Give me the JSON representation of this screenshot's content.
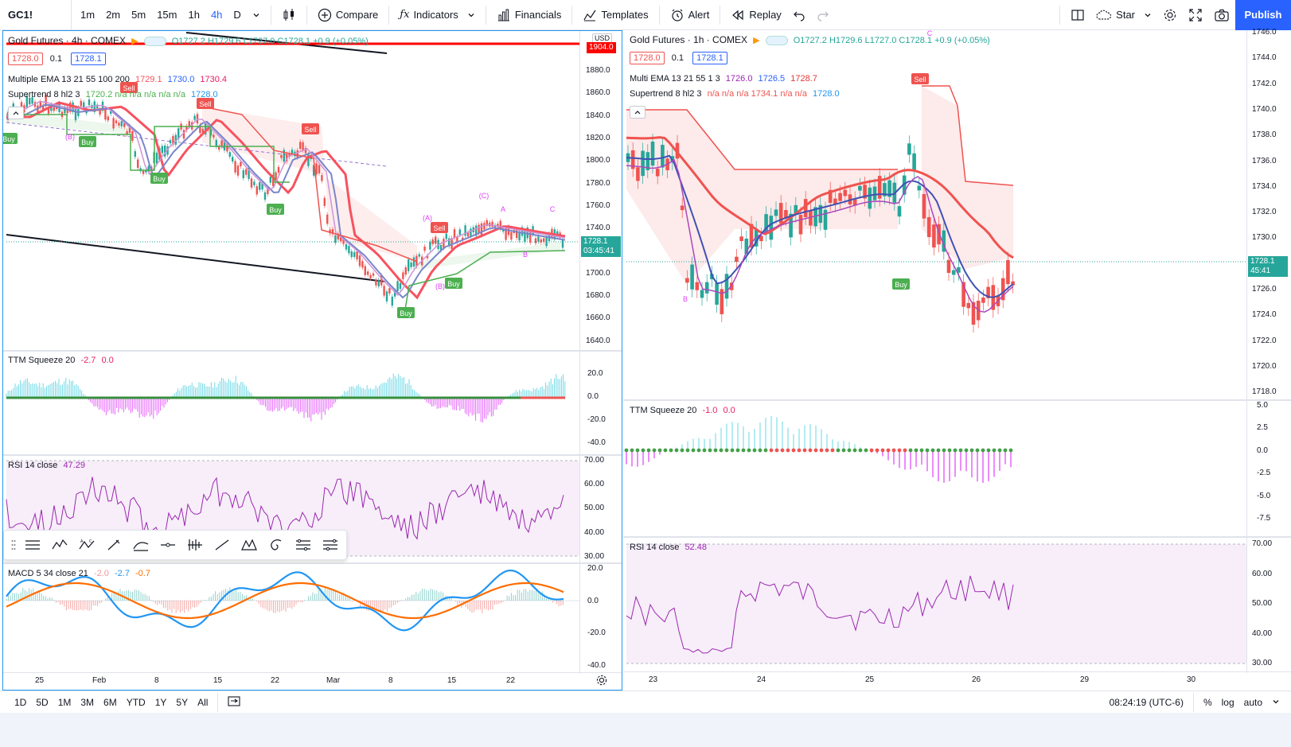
{
  "toolbar": {
    "symbol": "GC1!",
    "intervals": [
      "1m",
      "2m",
      "5m",
      "15m",
      "1h",
      "4h",
      "D"
    ],
    "active_interval": "4h",
    "compare": "Compare",
    "indicators": "Indicators",
    "financials": "Financials",
    "templates": "Templates",
    "alert": "Alert",
    "replay": "Replay",
    "layout_name": "Star",
    "publish": "Publish"
  },
  "left_chart": {
    "title": "Gold Futures · 4h · COMEX",
    "ohlc": "O1727.2 H1729.6 L1727.0 C1728.1 +0.9 (+0.05%)",
    "bid": "1728.0",
    "spread": "0.1",
    "ask": "1728.1",
    "currency": "USD",
    "ema_label": "Multiple EMA 13 21 55 100 200",
    "ema_vals": [
      "1729.1",
      "1730.0",
      "1730.4"
    ],
    "supertrend_label": "Supertrend 8 hl2 3",
    "supertrend_vals": "1720.2  n/a  n/a  n/a  n/a  n/a",
    "supertrend_last": "1728.0",
    "price_ticks": [
      "1880.0",
      "1860.0",
      "1840.0",
      "1820.0",
      "1800.0",
      "1780.0",
      "1760.0",
      "1740.0",
      "1720.0",
      "1700.0",
      "1680.0",
      "1660.0",
      "1640.0"
    ],
    "top_price_flag": "1904.0",
    "last_price": "1728.1",
    "countdown": "03:45:41",
    "signals": [
      "Buy",
      "Buy",
      "Buy",
      "Buy",
      "Buy",
      "Buy",
      "Sell",
      "Sell",
      "Sell",
      "Sell"
    ],
    "pattern_labels": [
      "(B)",
      "(A)",
      "(C)",
      "A",
      "C",
      "B",
      "(B)"
    ],
    "ttm_label": "TTM Squeeze 20",
    "ttm_vals": [
      "-2.7",
      "0.0"
    ],
    "ttm_ticks": [
      "20.0",
      "0.0",
      "-20.0",
      "-40.0"
    ],
    "rsi_label": "RSI 14 close",
    "rsi_val": "47.29",
    "rsi_ticks": [
      "70.00",
      "60.00",
      "50.00",
      "40.00",
      "30.00"
    ],
    "macd_label": "MACD 5 34 close 21",
    "macd_vals": [
      "-2.0",
      "-2.7",
      "-0.7"
    ],
    "macd_ticks": [
      "20.0",
      "0.0",
      "-20.0",
      "-40.0"
    ],
    "date_ticks": [
      "25",
      "Feb",
      "8",
      "15",
      "22",
      "Mar",
      "8",
      "15",
      "22"
    ]
  },
  "right_chart": {
    "title": "Gold Futures · 1h · COMEX",
    "ohlc": "O1727.2 H1729.6 L1727.0 C1728.1 +0.9 (+0.05%)",
    "bid": "1728.0",
    "spread": "0.1",
    "ask": "1728.1",
    "ema_label": "Multi EMA 13 21 55 1 3",
    "ema_vals": [
      "1726.0",
      "1726.5",
      "1728.7"
    ],
    "supertrend_label": "Supertrend 8 hl2 3",
    "supertrend_vals": "n/a  n/a  n/a  1734.1  n/a  n/a",
    "supertrend_last": "1728.0",
    "price_ticks": [
      "1746.0",
      "1744.0",
      "1742.0",
      "1740.0",
      "1738.0",
      "1736.0",
      "1734.0",
      "1732.0",
      "1730.0",
      "1728.0",
      "1726.0",
      "1724.0",
      "1722.0",
      "1720.0",
      "1718.0"
    ],
    "last_price": "1728.1",
    "countdown": "45:41",
    "signals": [
      "Sell",
      "Buy"
    ],
    "pattern_labels": [
      "B",
      "C"
    ],
    "ttm_label": "TTM Squeeze 20",
    "ttm_vals": [
      "-1.0",
      "0.0"
    ],
    "ttm_ticks": [
      "5.0",
      "2.5",
      "0.0",
      "-2.5",
      "-5.0",
      "-7.5"
    ],
    "rsi_label": "RSI 14 close",
    "rsi_val": "52.48",
    "rsi_ticks": [
      "70.00",
      "60.00",
      "50.00",
      "40.00",
      "30.00"
    ],
    "date_ticks": [
      "23",
      "24",
      "25",
      "26",
      "29",
      "30"
    ]
  },
  "bottom": {
    "ranges": [
      "1D",
      "5D",
      "1M",
      "3M",
      "6M",
      "YTD",
      "1Y",
      "5Y",
      "All"
    ],
    "time": "08:24:19 (UTC-6)",
    "pct": "%",
    "log": "log",
    "auto": "auto"
  },
  "colors": {
    "accent": "#2962ff",
    "up": "#26a69a",
    "down": "#ef5350",
    "ema_fast": "#f7525f",
    "rsi": "#9c27b0"
  }
}
